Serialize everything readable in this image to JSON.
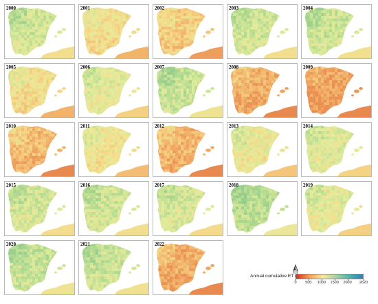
{
  "panels": [
    {
      "year": "2000",
      "level": 0.3
    },
    {
      "year": "2001",
      "level": 0.55
    },
    {
      "year": "2002",
      "level": 0.65
    },
    {
      "year": "2003",
      "level": 0.3
    },
    {
      "year": "2004",
      "level": 0.28
    },
    {
      "year": "2005",
      "level": 0.55
    },
    {
      "year": "2006",
      "level": 0.4
    },
    {
      "year": "2007",
      "level": 0.25
    },
    {
      "year": "2008",
      "level": 0.82
    },
    {
      "year": "2009",
      "level": 0.88
    },
    {
      "year": "2010",
      "level": 0.75
    },
    {
      "year": "2011",
      "level": 0.5
    },
    {
      "year": "2012",
      "level": 0.78
    },
    {
      "year": "2013",
      "level": 0.45
    },
    {
      "year": "2014",
      "level": 0.38
    },
    {
      "year": "2015",
      "level": 0.32
    },
    {
      "year": "2016",
      "level": 0.3
    },
    {
      "year": "2017",
      "level": 0.33
    },
    {
      "year": "2018",
      "level": 0.2
    },
    {
      "year": "2019",
      "level": 0.4
    },
    {
      "year": "2020",
      "level": 0.25
    },
    {
      "year": "2021",
      "level": 0.27
    },
    {
      "year": "2022",
      "level": 0.82
    }
  ],
  "legend": {
    "title": "Annual cumulative ET (mm)",
    "ticks": [
      "0",
      "500",
      "1000",
      "1500",
      "2000",
      "2620"
    ],
    "tick_values": [
      0,
      500,
      1000,
      1500,
      2000,
      2620
    ],
    "max": 2620,
    "colors": [
      "#d7301f",
      "#f4a259",
      "#fbe7a1",
      "#a6d49f",
      "#4fb3a9",
      "#2b83ba"
    ]
  },
  "palette": {
    "land": [
      "#8fc98a",
      "#b8dd92",
      "#e6ec9c",
      "#f5d98a",
      "#f2b36b",
      "#e8894f"
    ],
    "africa": "#f0b27a",
    "sea": "#ffffff"
  },
  "north_arrow_icon": "north-arrow-icon"
}
